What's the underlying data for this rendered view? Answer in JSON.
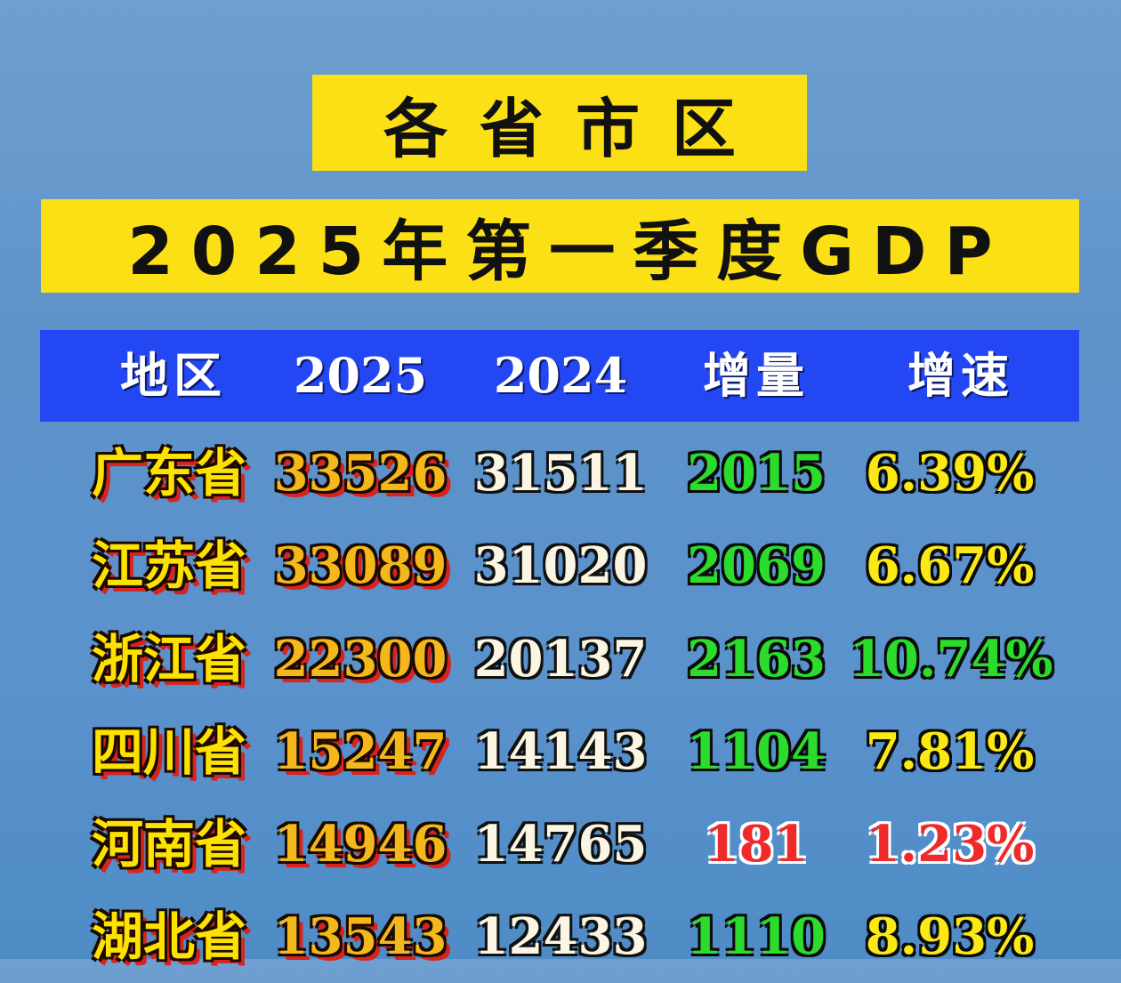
{
  "title": {
    "line1": "各省市区",
    "line2": "2025年第一季度GDP"
  },
  "table": {
    "headers": [
      "地区",
      "2025",
      "2024",
      "增量",
      "增速"
    ],
    "rows": [
      {
        "region": "广东省",
        "v2025": "33526",
        "v2024": "31511",
        "increase": "2015",
        "rate": "6.39%",
        "rate_color": "yellow",
        "increase_color": "green"
      },
      {
        "region": "江苏省",
        "v2025": "33089",
        "v2024": "31020",
        "increase": "2069",
        "rate": "6.67%",
        "rate_color": "yellow",
        "increase_color": "green"
      },
      {
        "region": "浙江省",
        "v2025": "22300",
        "v2024": "20137",
        "increase": "2163",
        "rate": "10.74%",
        "rate_color": "green",
        "increase_color": "green"
      },
      {
        "region": "四川省",
        "v2025": "15247",
        "v2024": "14143",
        "increase": "1104",
        "rate": "7.81%",
        "rate_color": "yellow",
        "increase_color": "green"
      },
      {
        "region": "河南省",
        "v2025": "14946",
        "v2024": "14765",
        "increase": "181",
        "rate": "1.23%",
        "rate_color": "red",
        "increase_color": "red"
      },
      {
        "region": "湖北省",
        "v2025": "13543",
        "v2024": "12433",
        "increase": "1110",
        "rate": "8.93%",
        "rate_color": "yellow",
        "increase_color": "green"
      }
    ]
  },
  "colors": {
    "background": "#5e93c9",
    "title_bg": "#fce016",
    "header_bg": "#2347f2",
    "positive": "#2bdc2d",
    "negative": "#ef2a2a",
    "highlight": "#fbe915"
  }
}
